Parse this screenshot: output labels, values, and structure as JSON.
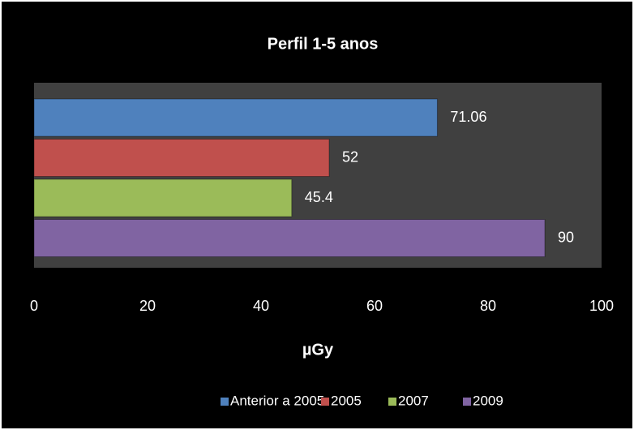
{
  "chart_data": {
    "type": "bar",
    "orientation": "horizontal",
    "title": "Perfil 1-5 anos",
    "xlabel": "µGy",
    "series": [
      {
        "name": "Anterior a 2005",
        "color": "#4f81bd",
        "values": [
          71.06
        ]
      },
      {
        "name": "2005",
        "color": "#c0504d",
        "values": [
          52
        ]
      },
      {
        "name": "2007",
        "color": "#9bbb59",
        "values": [
          45.4
        ]
      },
      {
        "name": "2009",
        "color": "#8064a2",
        "values": [
          90
        ]
      }
    ],
    "xlim": [
      0,
      100
    ],
    "xticks": [
      0,
      20,
      40,
      60,
      80,
      100
    ],
    "legend": "bottom",
    "grid": false
  }
}
